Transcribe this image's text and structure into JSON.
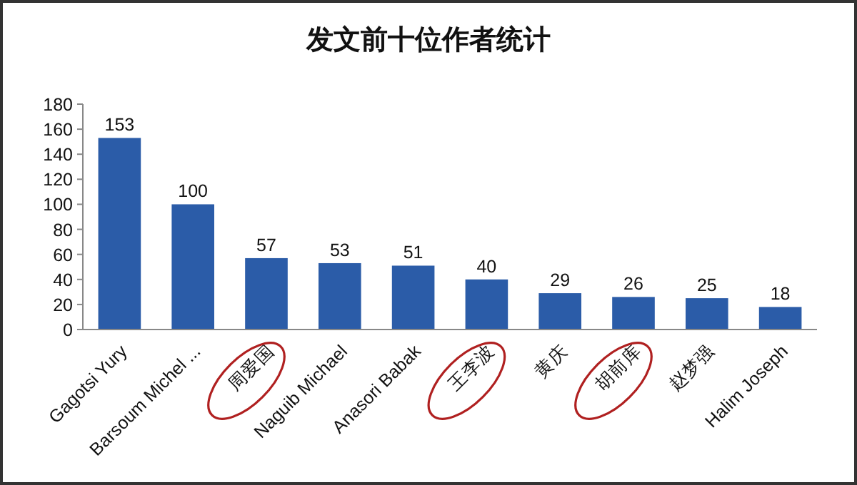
{
  "chart_data": {
    "type": "bar",
    "title": "发文前十位作者统计",
    "categories": [
      "Gagotsi Yury",
      "Barsoum Michel ...",
      "周爱国",
      "Naguib Michael",
      "Anasori Babak",
      "王李波",
      "黄庆",
      "胡前库",
      "赵梦强",
      "Halim Joseph"
    ],
    "values": [
      153,
      100,
      57,
      53,
      51,
      40,
      29,
      26,
      25,
      18
    ],
    "color": "#2b5ca8",
    "ylim": [
      0,
      180
    ],
    "yticks": [
      0,
      20,
      40,
      60,
      80,
      100,
      120,
      140,
      160,
      180
    ],
    "data_labels": true
  }
}
